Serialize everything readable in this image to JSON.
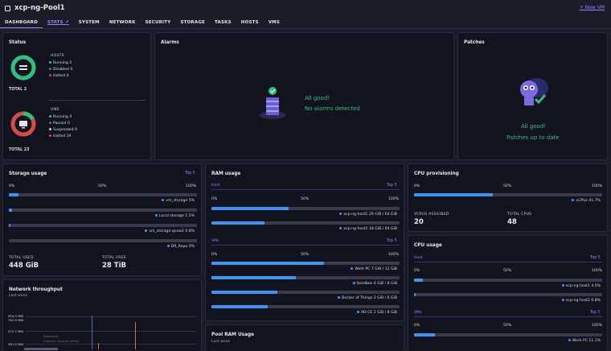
{
  "header": {
    "title": "xcp-ng-Pool1",
    "new_vm": "+ New VM"
  },
  "tabs": [
    "DASHBOARD",
    "STATS ↗",
    "SYSTEM",
    "NETWORK",
    "SECURITY",
    "STORAGE",
    "TASKS",
    "HOSTS",
    "VMS"
  ],
  "status": {
    "title": "Status",
    "hosts_label": "HOSTS",
    "hosts": [
      {
        "label": "Running",
        "value": "2",
        "color": "#2fbf80"
      },
      {
        "label": "Disabled",
        "value": "0",
        "color": "#6b6b80"
      },
      {
        "label": "Halted",
        "value": "0",
        "color": "#d64a4a"
      }
    ],
    "hosts_total_label": "TOTAL",
    "hosts_total": "2",
    "vms_label": "VMS",
    "vms": [
      {
        "label": "Running",
        "value": "4",
        "color": "#2fbf80"
      },
      {
        "label": "Paused",
        "value": "0",
        "color": "#6b6b80"
      },
      {
        "label": "Suspended",
        "value": "0",
        "color": "#c8c8d8"
      },
      {
        "label": "Halted",
        "value": "19",
        "color": "#d64a4a"
      }
    ],
    "vms_total_label": "TOTAL",
    "vms_total": "23"
  },
  "alarms": {
    "title": "Alarms",
    "line1": "All good!",
    "line2": "No alarms detected"
  },
  "patches": {
    "title": "Patches",
    "line1": "All good!",
    "line2": "Patches up to date"
  },
  "storage": {
    "title": "Storage usage",
    "top5": "Top 5",
    "scale": [
      "0%",
      "50%",
      "100%"
    ],
    "items": [
      {
        "name": "vm_storage",
        "pct": "5%",
        "fill": 0.05
      },
      {
        "name": "Local storage",
        "pct": "1.5%",
        "fill": 0.015
      },
      {
        "name": "vm_storage-qcow2",
        "pct": "0.8%",
        "fill": 0.008
      },
      {
        "name": "DR_Repo",
        "pct": "0%",
        "fill": 0
      }
    ],
    "used_label": "TOTAL USED",
    "used": "448 GiB",
    "free_label": "TOTAL FREE",
    "free": "28 TiB"
  },
  "ram": {
    "title": "RAM usage",
    "host_label": "Host",
    "top5a": "Top 5",
    "scale": [
      "0%",
      "50%",
      "100%"
    ],
    "hosts": [
      {
        "name": "xcp-ng-host1",
        "value": "26 GiB / 64 GiB",
        "fill": 0.41
      },
      {
        "name": "xcp-ng-host2",
        "value": "18 GiB / 64 GiB",
        "fill": 0.28
      }
    ],
    "vms_label": "VMs",
    "top5b": "Top 5",
    "vms": [
      {
        "name": "Work PC",
        "value": "7 GiB / 12 GiB",
        "fill": 0.6
      },
      {
        "name": "Seedbox",
        "value": "4 GiB / 8 GiB",
        "fill": 0.45
      },
      {
        "name": "Docker of Things",
        "value": "2 GiB / 6 GiB",
        "fill": 0.35
      },
      {
        "name": "XO-CE",
        "value": "2 GiB / 8 GiB",
        "fill": 0.3
      }
    ]
  },
  "cpuprov": {
    "title": "CPU provisioning",
    "scale": [
      "0%",
      "50%",
      "100%"
    ],
    "label": "vCPUs",
    "pct": "41.7%",
    "fill": 0.417,
    "assigned_label": "VCPUS ASSIGNED",
    "assigned": "20",
    "total_label": "TOTAL CPUS",
    "total": "48"
  },
  "cpuusage": {
    "title": "CPU usage",
    "host_label": "Host",
    "top5a": "Top 5",
    "scale": [
      "0%",
      "50%",
      "100%"
    ],
    "hosts": [
      {
        "name": "xcp-ng-host1",
        "pct": "4.5%",
        "fill": 0.045
      },
      {
        "name": "xcp-ng-host2",
        "pct": "0.8%",
        "fill": 0.008
      }
    ],
    "vms_label": "VMs",
    "top5b": "Top 5",
    "vms": [
      {
        "name": "Work PC",
        "pct": "11.1%",
        "fill": 0.111
      }
    ]
  },
  "network": {
    "title": "Network throughput",
    "sub": "Last week",
    "ticks": [
      "954.5 MiB",
      "762.9 MiB",
      "572.2 MiB",
      "381.5 MiB"
    ],
    "legend1": "Spectacle",
    "legend2": "Capture Capture (85%)"
  },
  "poolram": {
    "title": "Pool RAM Usage",
    "sub": "Last week"
  }
}
